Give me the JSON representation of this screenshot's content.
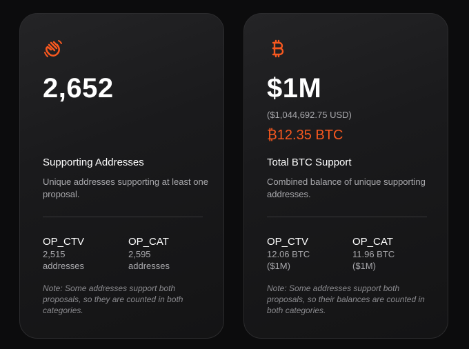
{
  "cards": [
    {
      "icon": "waving-hand-icon",
      "big_value": "2,652",
      "title": "Supporting Addresses",
      "description": "Unique addresses supporting at least one proposal.",
      "stats": [
        {
          "label": "OP_CTV",
          "value": "2,515 addresses"
        },
        {
          "label": "OP_CAT",
          "value": "2,595 addresses"
        }
      ],
      "note": "Note: Some addresses support both proposals, so they are counted in both categories."
    },
    {
      "icon": "bitcoin-icon",
      "big_value": "$1M",
      "usd_value": "($1,044,692.75 USD)",
      "btc_value": "₿12.35 BTC",
      "title": "Total BTC Support",
      "description": "Combined balance of unique supporting addresses.",
      "stats": [
        {
          "label": "OP_CTV",
          "value": "12.06 BTC ($1M)"
        },
        {
          "label": "OP_CAT",
          "value": "11.96 BTC ($1M)"
        }
      ],
      "note": "Note: Some addresses support both proposals, so their balances are counted in both categories."
    }
  ],
  "colors": {
    "accent": "#f7581f",
    "background": "#0c0c0d",
    "card": "#1c1c1e",
    "muted_text": "#a9a9ad"
  }
}
